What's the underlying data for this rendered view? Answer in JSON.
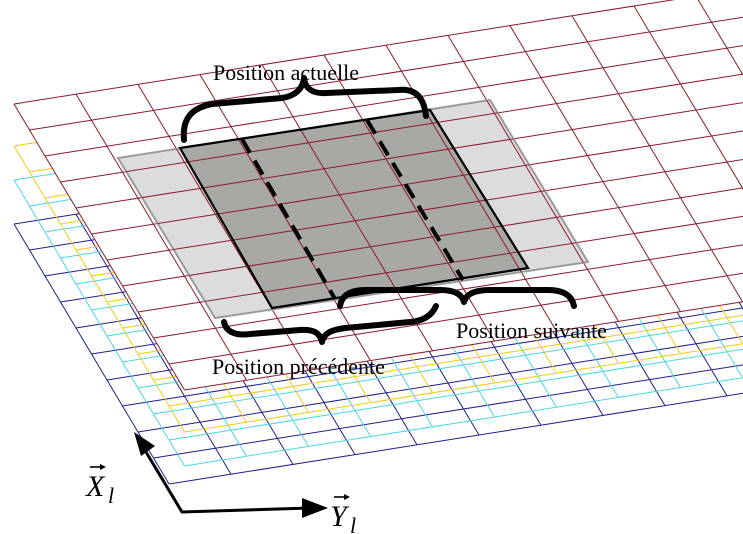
{
  "labels": {
    "current": "Position actuelle",
    "next": "Position suivante",
    "previous": "Position précédente"
  },
  "axes": {
    "x_letter": "X",
    "x_sub": "l",
    "y_letter": "Y",
    "y_sub": "l"
  },
  "colors": {
    "layer_red": "#8b1a2e",
    "layer_yellow": "#f2c81c",
    "layer_cyan": "#4ad6e6",
    "layer_blue": "#1f1f8c",
    "current_fill": "#a8a8a4",
    "window_fill": "#dcdcdc",
    "window_edge": "#9a9a9a"
  }
}
